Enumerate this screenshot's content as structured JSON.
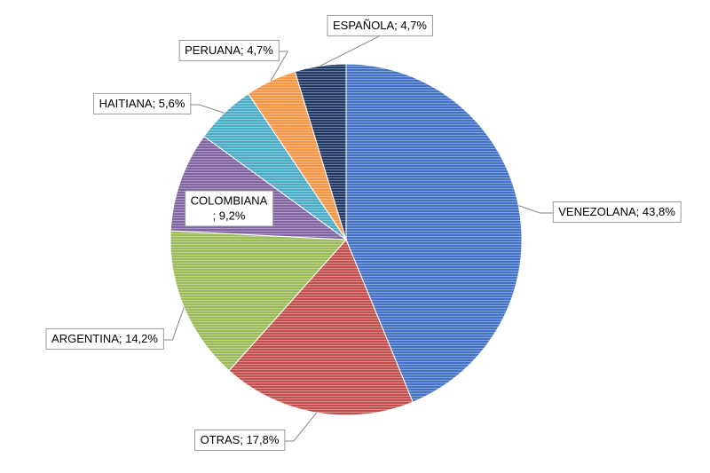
{
  "chart_data": {
    "type": "pie",
    "values": [
      43.8,
      17.8,
      14.2,
      9.2,
      5.6,
      4.7,
      4.7
    ],
    "value_labels": [
      "VENEZOLANA; 43,8%",
      "OTRAS; 17,8%",
      "ARGENTINA; 14,2%",
      "COLOMBIANA\n; 9,2%",
      "HAITIANA; 5,6%",
      "PERUANA; 4,7%",
      "ESPAÑOLA; 4,7%"
    ],
    "colors": [
      "#4472c4",
      "#c0504d",
      "#9bbb59",
      "#8064a2",
      "#4bacc6",
      "#f79646",
      "#1f3864"
    ]
  }
}
